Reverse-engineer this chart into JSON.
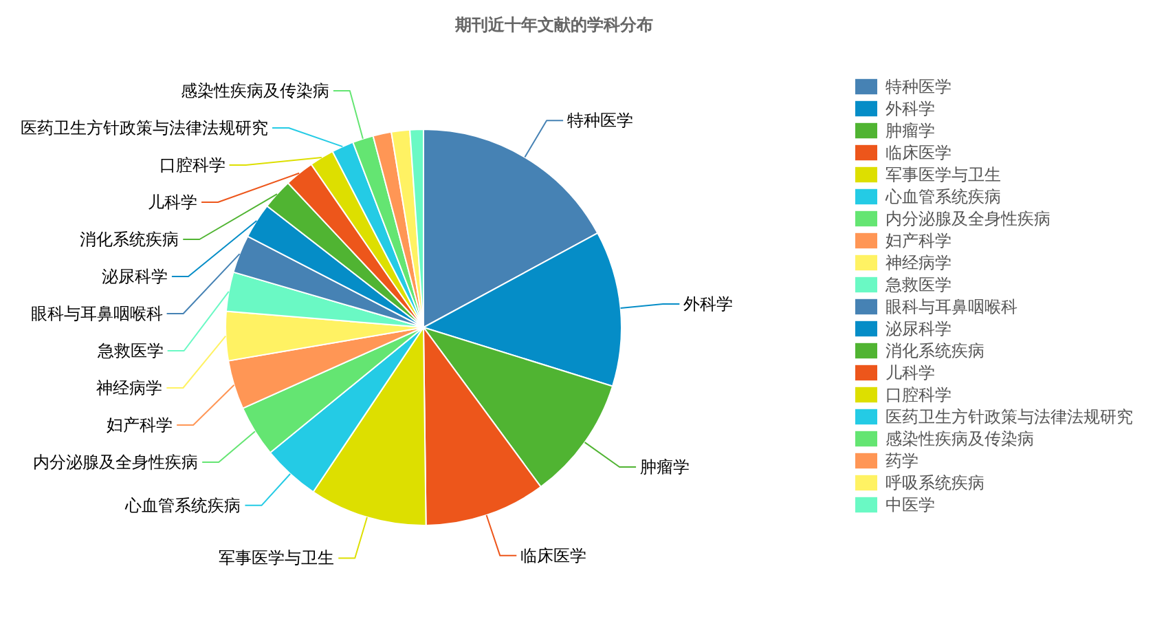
{
  "chart_data": {
    "type": "pie",
    "title": "期刊近十年文献的学科分布",
    "categories": [
      "特种医学",
      "外科学",
      "肿瘤学",
      "临床医学",
      "军事医学与卫生",
      "心血管系统疾病",
      "内分泌腺及全身性疾病",
      "妇产科学",
      "神经病学",
      "急救医学",
      "眼科与耳鼻咽喉科",
      "泌尿科学",
      "消化系统疾病",
      "儿科学",
      "口腔科学",
      "医药卫生方针政策与法律法规研究",
      "感染性疾病及传染病",
      "药学",
      "呼吸系统疾病",
      "中医学"
    ],
    "values": [
      17.1,
      12.7,
      10.1,
      9.9,
      9.6,
      4.7,
      4.2,
      4.0,
      4.0,
      3.2,
      3.1,
      2.9,
      2.5,
      2.4,
      2.0,
      1.8,
      1.7,
      1.5,
      1.5,
      1.1
    ],
    "colors": [
      "#4682b4",
      "#058dc7",
      "#50b432",
      "#ed561b",
      "#dddf00",
      "#24cbe5",
      "#64e572",
      "#ff9655",
      "#fff263",
      "#6af9c4",
      "#4682b4",
      "#058dc7",
      "#50b432",
      "#ed561b",
      "#dddf00",
      "#24cbe5",
      "#64e572",
      "#ff9655",
      "#fff263",
      "#6af9c4"
    ],
    "legend": "right"
  }
}
